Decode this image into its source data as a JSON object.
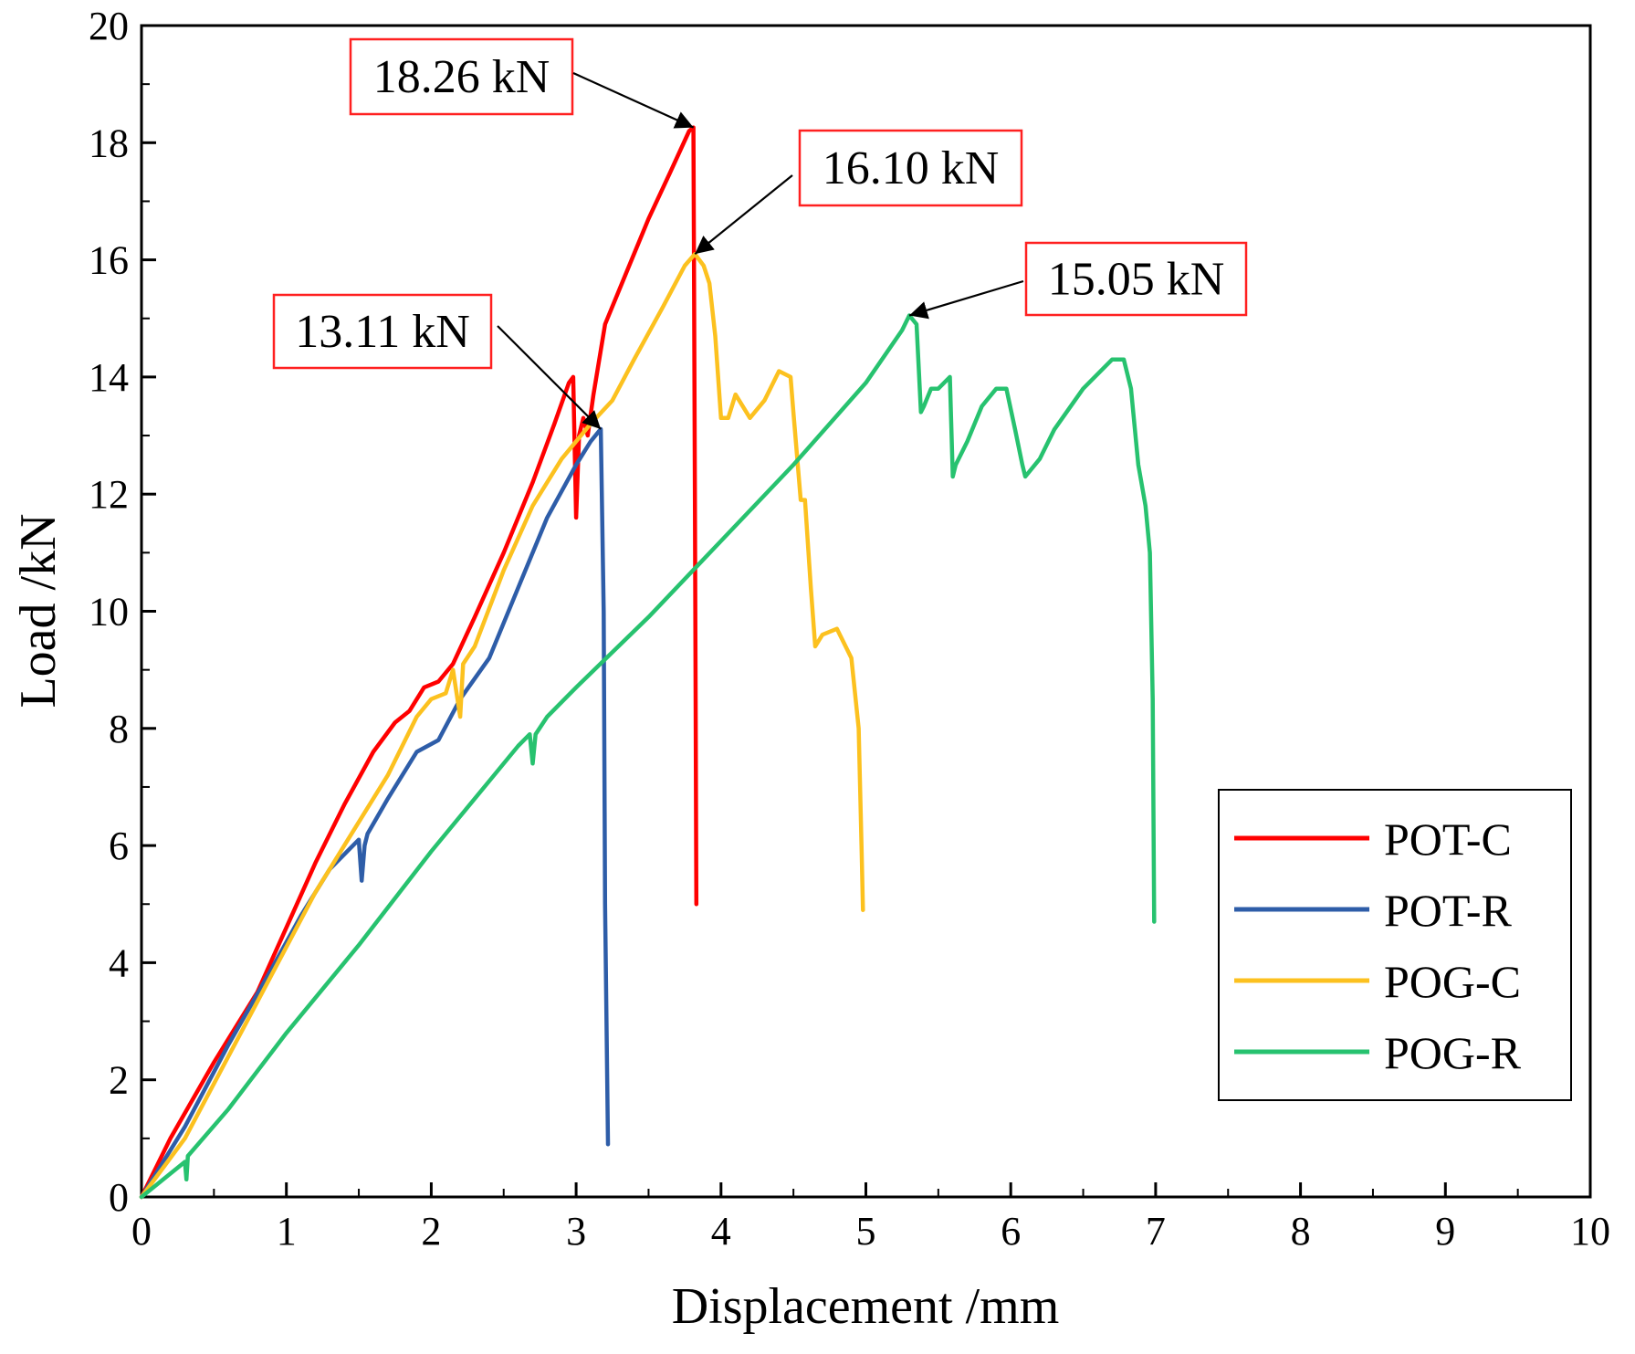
{
  "chart_data": {
    "type": "line",
    "title": "",
    "xlabel": "Displacement /mm",
    "ylabel": "Load /kN",
    "xlim": [
      0,
      10
    ],
    "ylim": [
      0,
      20
    ],
    "xticks": [
      "0",
      "1",
      "2",
      "3",
      "4",
      "5",
      "6",
      "7",
      "8",
      "9",
      "10"
    ],
    "yticks": [
      "0",
      "2",
      "4",
      "6",
      "8",
      "10",
      "12",
      "14",
      "16",
      "18",
      "20"
    ],
    "grid": false,
    "legend_position": "bottom-right",
    "series": [
      {
        "name": "POT-C",
        "color": "#ff0000",
        "x": [
          0,
          0.2,
          0.5,
          0.8,
          1.0,
          1.2,
          1.4,
          1.6,
          1.75,
          1.85,
          1.95,
          2.05,
          2.15,
          2.3,
          2.5,
          2.7,
          2.85,
          2.95,
          2.98,
          3.0,
          3.02,
          3.05,
          3.08,
          3.12,
          3.2,
          3.35,
          3.5,
          3.65,
          3.78,
          3.81,
          3.82,
          3.83
        ],
        "y": [
          0,
          1.0,
          2.3,
          3.5,
          4.6,
          5.7,
          6.7,
          7.6,
          8.1,
          8.3,
          8.7,
          8.8,
          9.1,
          9.9,
          11.0,
          12.2,
          13.2,
          13.9,
          14.0,
          11.6,
          13.0,
          13.3,
          13.0,
          13.7,
          14.9,
          15.8,
          16.7,
          17.5,
          18.2,
          18.26,
          12.0,
          5.0
        ]
      },
      {
        "name": "POT-R",
        "color": "#2e5da8",
        "x": [
          0,
          0.3,
          0.6,
          0.9,
          1.1,
          1.3,
          1.5,
          1.52,
          1.54,
          1.56,
          1.7,
          1.9,
          2.05,
          2.2,
          2.4,
          2.6,
          2.8,
          3.0,
          3.1,
          3.15,
          3.17,
          3.19,
          3.2,
          3.22
        ],
        "y": [
          0,
          1.2,
          2.6,
          3.9,
          4.8,
          5.6,
          6.1,
          5.4,
          6.0,
          6.2,
          6.8,
          7.6,
          7.8,
          8.5,
          9.2,
          10.4,
          11.6,
          12.5,
          12.9,
          13.05,
          13.11,
          10.0,
          5.0,
          0.9
        ]
      },
      {
        "name": "POG-C",
        "color": "#fcc11f",
        "x": [
          0,
          0.3,
          0.6,
          0.9,
          1.2,
          1.5,
          1.7,
          1.9,
          2.0,
          2.1,
          2.15,
          2.2,
          2.22,
          2.3,
          2.5,
          2.7,
          2.9,
          3.1,
          3.25,
          3.4,
          3.6,
          3.75,
          3.82,
          3.88,
          3.92,
          3.96,
          4.0,
          4.05,
          4.1,
          4.2,
          4.3,
          4.4,
          4.48,
          4.5,
          4.55,
          4.58,
          4.62,
          4.65,
          4.7,
          4.8,
          4.9,
          4.95,
          4.97,
          4.98
        ],
        "y": [
          0,
          1.0,
          2.4,
          3.8,
          5.2,
          6.4,
          7.2,
          8.2,
          8.5,
          8.6,
          9.0,
          8.2,
          9.1,
          9.4,
          10.7,
          11.8,
          12.6,
          13.2,
          13.6,
          14.3,
          15.2,
          15.9,
          16.1,
          15.9,
          15.6,
          14.7,
          13.3,
          13.3,
          13.7,
          13.3,
          13.6,
          14.1,
          14.0,
          13.4,
          11.9,
          11.9,
          10.4,
          9.4,
          9.6,
          9.7,
          9.2,
          8.0,
          6.0,
          4.9
        ]
      },
      {
        "name": "POG-R",
        "color": "#27c26f",
        "x": [
          0,
          0.3,
          0.31,
          0.32,
          0.6,
          1.0,
          1.5,
          2.0,
          2.4,
          2.6,
          2.68,
          2.7,
          2.72,
          2.8,
          3.0,
          3.5,
          4.0,
          4.5,
          5.0,
          5.25,
          5.3,
          5.35,
          5.38,
          5.4,
          5.45,
          5.5,
          5.58,
          5.6,
          5.62,
          5.7,
          5.8,
          5.9,
          5.97,
          6.03,
          6.08,
          6.1,
          6.2,
          6.3,
          6.5,
          6.7,
          6.78,
          6.83,
          6.88,
          6.93,
          6.96,
          6.98,
          6.99
        ],
        "y": [
          0,
          0.6,
          0.3,
          0.7,
          1.5,
          2.8,
          4.3,
          5.9,
          7.1,
          7.7,
          7.9,
          7.4,
          7.9,
          8.2,
          8.7,
          9.9,
          11.2,
          12.5,
          13.9,
          14.8,
          15.05,
          14.9,
          13.4,
          13.5,
          13.8,
          13.8,
          14.0,
          12.3,
          12.5,
          12.9,
          13.5,
          13.8,
          13.8,
          13.1,
          12.5,
          12.3,
          12.6,
          13.1,
          13.8,
          14.3,
          14.3,
          13.8,
          12.5,
          11.8,
          11.0,
          8.5,
          4.7
        ]
      }
    ],
    "annotations": [
      {
        "text": "18.26 kN",
        "x": 3.81,
        "y": 18.26
      },
      {
        "text": "16.10 kN",
        "x": 3.82,
        "y": 16.1
      },
      {
        "text": "15.05 kN",
        "x": 5.3,
        "y": 15.05
      },
      {
        "text": "13.11 kN",
        "x": 3.17,
        "y": 13.11
      }
    ]
  }
}
